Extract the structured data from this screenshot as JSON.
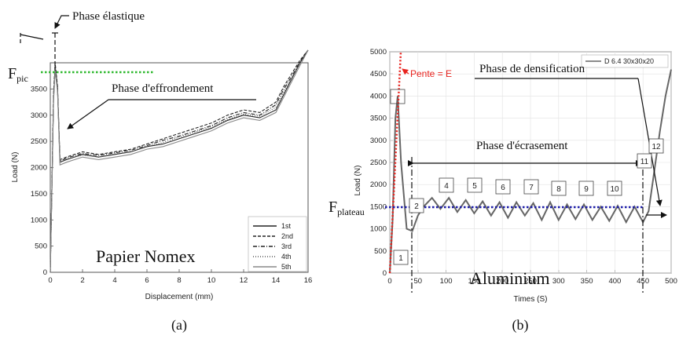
{
  "chart_data": [
    {
      "type": "line",
      "xlabel": "Displacement (mm)",
      "ylabel": "Load (N)",
      "xlim": [
        0,
        16
      ],
      "ylim": [
        0,
        4000
      ],
      "x_ticks": [
        0,
        2,
        4,
        6,
        8,
        10,
        12,
        14,
        16
      ],
      "y_ticks": [
        0,
        500,
        1000,
        1500,
        2000,
        2500,
        3000,
        3500
      ],
      "legend_position": "bottom-right",
      "series": [
        {
          "name": "1st",
          "style": "solid",
          "color": "#222222",
          "x": [
            0,
            0.1,
            0.2,
            0.3,
            0.45,
            0.6,
            1,
            2,
            3,
            4,
            5,
            6,
            7,
            8,
            9,
            10,
            11,
            12,
            13,
            14,
            14.5,
            15,
            15.5,
            16
          ],
          "y": [
            0,
            1600,
            3300,
            3900,
            3500,
            2100,
            2150,
            2250,
            2200,
            2250,
            2300,
            2400,
            2450,
            2550,
            2650,
            2750,
            2900,
            3000,
            2950,
            3100,
            3400,
            3700,
            4000,
            4300
          ]
        },
        {
          "name": "2nd",
          "style": "dashed",
          "color": "#222222",
          "x": [
            0,
            0.1,
            0.2,
            0.3,
            0.45,
            0.6,
            1,
            2,
            3,
            4,
            5,
            6,
            7,
            8,
            9,
            10,
            11,
            12,
            13,
            14,
            14.5,
            15,
            15.5,
            16
          ],
          "y": [
            0,
            1650,
            3400,
            4000,
            3550,
            2150,
            2200,
            2300,
            2250,
            2300,
            2350,
            2450,
            2550,
            2650,
            2750,
            2850,
            3000,
            3100,
            3050,
            3250,
            3550,
            3800,
            4050,
            4300
          ]
        },
        {
          "name": "3rd",
          "style": "dash-dot",
          "color": "#222222",
          "x": [
            0,
            0.1,
            0.2,
            0.3,
            0.45,
            0.6,
            1,
            2,
            3,
            4,
            5,
            6,
            7,
            8,
            9,
            10,
            11,
            12,
            13,
            14,
            14.5,
            15,
            15.5,
            16
          ],
          "y": [
            0,
            1620,
            3350,
            3950,
            3520,
            2120,
            2180,
            2270,
            2230,
            2280,
            2330,
            2420,
            2520,
            2600,
            2700,
            2800,
            2950,
            3050,
            3000,
            3200,
            3500,
            3750,
            4020,
            4300
          ]
        },
        {
          "name": "4th",
          "style": "dotted",
          "color": "#555555",
          "x": [
            0,
            0.1,
            0.2,
            0.3,
            0.45,
            0.6,
            1,
            2,
            3,
            4,
            5,
            6,
            7,
            8,
            9,
            10,
            11,
            12,
            13,
            14,
            14.5,
            15,
            15.5,
            16
          ],
          "y": [
            0,
            1600,
            3300,
            3900,
            3480,
            2100,
            2160,
            2240,
            2200,
            2260,
            2300,
            2400,
            2480,
            2580,
            2680,
            2780,
            2920,
            3020,
            2980,
            3150,
            3450,
            3720,
            4000,
            4300
          ]
        },
        {
          "name": "5th",
          "style": "solid",
          "color": "#888888",
          "x": [
            0,
            0.1,
            0.2,
            0.3,
            0.45,
            0.6,
            1,
            2,
            3,
            4,
            5,
            6,
            7,
            8,
            9,
            10,
            11,
            12,
            13,
            14,
            14.5,
            15,
            15.5,
            16
          ],
          "y": [
            0,
            1550,
            3250,
            3850,
            3450,
            2050,
            2100,
            2200,
            2150,
            2200,
            2250,
            2350,
            2400,
            2500,
            2600,
            2700,
            2850,
            2950,
            2900,
            3050,
            3350,
            3650,
            3950,
            4250
          ]
        }
      ]
    },
    {
      "type": "line",
      "xlabel": "Times (S)",
      "ylabel": "Load (N)",
      "xlim": [
        0,
        500
      ],
      "ylim": [
        0,
        5000
      ],
      "x_ticks": [
        0,
        50,
        100,
        150,
        200,
        250,
        300,
        350,
        400,
        450,
        500
      ],
      "y_ticks": [
        0,
        500,
        1000,
        1500,
        2000,
        2500,
        3000,
        3500,
        4000,
        4500,
        5000
      ],
      "legend_position": "top-right",
      "series": [
        {
          "name": "D 6.4 30x30x20",
          "style": "solid",
          "color": "#666666",
          "x": [
            0,
            5,
            10,
            14,
            20,
            30,
            40,
            50,
            60,
            75,
            90,
            105,
            120,
            135,
            150,
            165,
            180,
            195,
            210,
            225,
            240,
            255,
            270,
            285,
            300,
            315,
            330,
            345,
            360,
            375,
            390,
            405,
            420,
            435,
            450,
            460,
            470,
            480,
            490,
            500
          ],
          "y": [
            0,
            1200,
            3500,
            4000,
            2500,
            1000,
            950,
            1300,
            1500,
            1700,
            1450,
            1700,
            1380,
            1650,
            1350,
            1620,
            1300,
            1600,
            1250,
            1600,
            1300,
            1580,
            1200,
            1600,
            1200,
            1550,
            1220,
            1550,
            1200,
            1500,
            1180,
            1520,
            1150,
            1500,
            1150,
            1400,
            2300,
            3200,
            4000,
            4600
          ]
        }
      ]
    }
  ],
  "annotations": {
    "a": {
      "elastic": "Phase élastique",
      "fpic": "F",
      "fpic_sub": "pic",
      "collapse": "Phase d'effrondement",
      "material": "Papier Nomex",
      "caption": "(a)",
      "fpic_color": "#2db82d"
    },
    "b": {
      "slope": "Pente = E",
      "slope_color": "#e8231e",
      "densification": "Phase de densification",
      "crushing": "Phase d'écrasement",
      "fplateau": "F",
      "fplateau_sub": "plateau",
      "fplateau_color": "#1a1aa8",
      "material": "Aluminium",
      "caption": "(b)",
      "boxes": [
        "1",
        "2",
        "4",
        "5",
        "6",
        "7",
        "8",
        "9",
        "10",
        "11",
        "12"
      ]
    }
  }
}
